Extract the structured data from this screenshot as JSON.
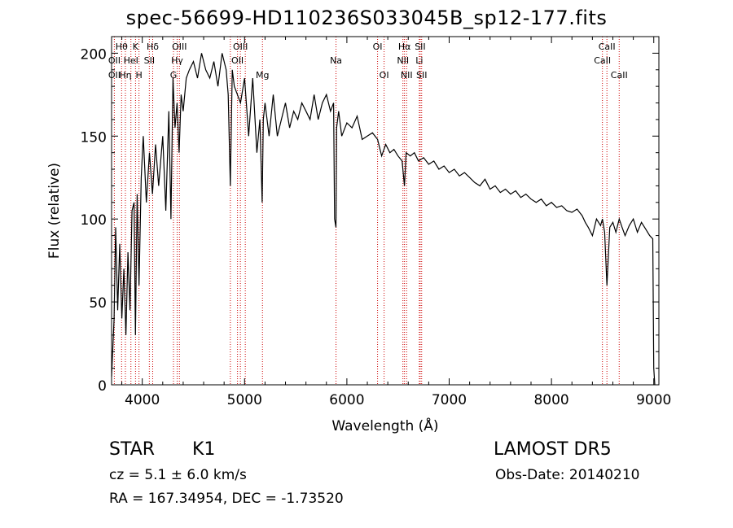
{
  "chart_data": {
    "type": "line",
    "title": "spec-56699-HD110236S033045B_sp12-177.fits",
    "xlabel": "Wavelength (Å)",
    "ylabel": "Flux (relative)",
    "xlim": [
      3700,
      9050
    ],
    "ylim": [
      0,
      210
    ],
    "xticks": [
      "4000",
      "5000",
      "6000",
      "7000",
      "8000",
      "9000"
    ],
    "yticks": [
      "0",
      "50",
      "100",
      "150",
      "200"
    ],
    "series": [
      {
        "x": [
          3700,
          3725,
          3740,
          3760,
          3780,
          3800,
          3820,
          3840,
          3860,
          3880,
          3900,
          3920,
          3933,
          3950,
          3968,
          3990,
          4010,
          4040,
          4070,
          4100,
          4130,
          4160,
          4200,
          4230,
          4260,
          4280,
          4300,
          4320,
          4340,
          4360,
          4380,
          4400,
          4430,
          4460,
          4500,
          4540,
          4580,
          4620,
          4660,
          4700,
          4740,
          4780,
          4820,
          4840,
          4861,
          4880,
          4900,
          4930,
          4960,
          5000,
          5040,
          5080,
          5120,
          5150,
          5172,
          5183,
          5200,
          5240,
          5280,
          5320,
          5360,
          5400,
          5440,
          5480,
          5520,
          5560,
          5600,
          5640,
          5680,
          5720,
          5760,
          5800,
          5840,
          5870,
          5880,
          5893,
          5900,
          5920,
          5950,
          6000,
          6050,
          6100,
          6150,
          6200,
          6250,
          6300,
          6340,
          6380,
          6420,
          6460,
          6500,
          6540,
          6563,
          6580,
          6620,
          6660,
          6700,
          6750,
          6800,
          6850,
          6900,
          6950,
          7000,
          7050,
          7100,
          7150,
          7200,
          7250,
          7300,
          7350,
          7400,
          7450,
          7500,
          7550,
          7600,
          7650,
          7700,
          7750,
          7800,
          7850,
          7900,
          7950,
          8000,
          8050,
          8100,
          8150,
          8200,
          8250,
          8300,
          8330,
          8360,
          8400,
          8440,
          8480,
          8498,
          8520,
          8542,
          8570,
          8600,
          8630,
          8662,
          8690,
          8720,
          8760,
          8800,
          8840,
          8880,
          8920,
          8960,
          8990,
          9000,
          9010
        ],
        "y": [
          5,
          40,
          95,
          45,
          85,
          40,
          70,
          30,
          80,
          45,
          105,
          110,
          30,
          115,
          60,
          125,
          150,
          110,
          140,
          115,
          145,
          120,
          150,
          105,
          165,
          100,
          185,
          155,
          170,
          140,
          175,
          165,
          185,
          190,
          195,
          185,
          200,
          190,
          185,
          195,
          180,
          200,
          190,
          175,
          120,
          190,
          180,
          175,
          170,
          185,
          150,
          185,
          140,
          160,
          110,
          160,
          170,
          150,
          175,
          150,
          160,
          170,
          155,
          165,
          160,
          170,
          165,
          160,
          175,
          160,
          170,
          175,
          165,
          170,
          100,
          95,
          155,
          165,
          150,
          158,
          155,
          162,
          148,
          150,
          152,
          148,
          138,
          145,
          140,
          142,
          138,
          135,
          120,
          140,
          138,
          140,
          135,
          137,
          133,
          135,
          130,
          132,
          128,
          130,
          126,
          128,
          125,
          122,
          120,
          124,
          118,
          120,
          116,
          118,
          115,
          117,
          113,
          115,
          112,
          110,
          112,
          108,
          110,
          107,
          108,
          105,
          104,
          106,
          102,
          98,
          95,
          90,
          100,
          96,
          100,
          92,
          60,
          95,
          98,
          92,
          100,
          95,
          90,
          96,
          100,
          92,
          98,
          94,
          90,
          88,
          10,
          0
        ]
      }
    ],
    "line_labels": [
      {
        "label": "Hθ",
        "wave": 3798,
        "row": 0
      },
      {
        "label": "OII",
        "wave": 3727,
        "row": 1
      },
      {
        "label": "OII",
        "wave": 3727,
        "row": 2
      },
      {
        "label": "K",
        "wave": 3934,
        "row": 0
      },
      {
        "label": "HeI",
        "wave": 3889,
        "row": 1
      },
      {
        "label": "Hη",
        "wave": 3835,
        "row": 2
      },
      {
        "label": "H",
        "wave": 3968,
        "row": 2
      },
      {
        "label": "Hδ",
        "wave": 4102,
        "row": 0
      },
      {
        "label": "SII",
        "wave": 4069,
        "row": 1
      },
      {
        "label": "OIII",
        "wave": 4363,
        "row": 0
      },
      {
        "label": "Hγ",
        "wave": 4341,
        "row": 1
      },
      {
        "label": "G",
        "wave": 4305,
        "row": 2
      },
      {
        "label": "OIII",
        "wave": 4959,
        "row": 0
      },
      {
        "label": "OII",
        "wave": 4931,
        "row": 1
      },
      {
        "label": "Mg",
        "wave": 5175,
        "row": 2
      },
      {
        "label": "Na",
        "wave": 5894,
        "row": 1
      },
      {
        "label": "OI",
        "wave": 6300,
        "row": 0
      },
      {
        "label": "OI",
        "wave": 6364,
        "row": 2
      },
      {
        "label": "Hα",
        "wave": 6563,
        "row": 0
      },
      {
        "label": "SII",
        "wave": 6717,
        "row": 0
      },
      {
        "label": "NII",
        "wave": 6548,
        "row": 1
      },
      {
        "label": "Li",
        "wave": 6708,
        "row": 1
      },
      {
        "label": "NII",
        "wave": 6584,
        "row": 2
      },
      {
        "label": "SII",
        "wave": 6731,
        "row": 2
      },
      {
        "label": "CaII",
        "wave": 8542,
        "row": 0
      },
      {
        "label": "CaII",
        "wave": 8498,
        "row": 1
      },
      {
        "label": "CaII",
        "wave": 8662,
        "row": 2
      }
    ],
    "marker_lines": [
      3727,
      3798,
      3835,
      3889,
      3934,
      3968,
      4069,
      4102,
      4305,
      4341,
      4363,
      4861,
      4931,
      4959,
      5007,
      5175,
      5894,
      6300,
      6364,
      6548,
      6563,
      6584,
      6708,
      6717,
      6731,
      8498,
      8542,
      8662
    ],
    "marker_color": "#cc0000",
    "grid": false
  },
  "info": {
    "class": "STAR",
    "subclass": "K1",
    "survey": "LAMOST  DR5",
    "cz": "cz = 5.1 ± 6.0 km/s",
    "obs_date": "Obs-Date: 20140210",
    "radec": "RA = 167.34954, DEC =  -1.73520"
  }
}
